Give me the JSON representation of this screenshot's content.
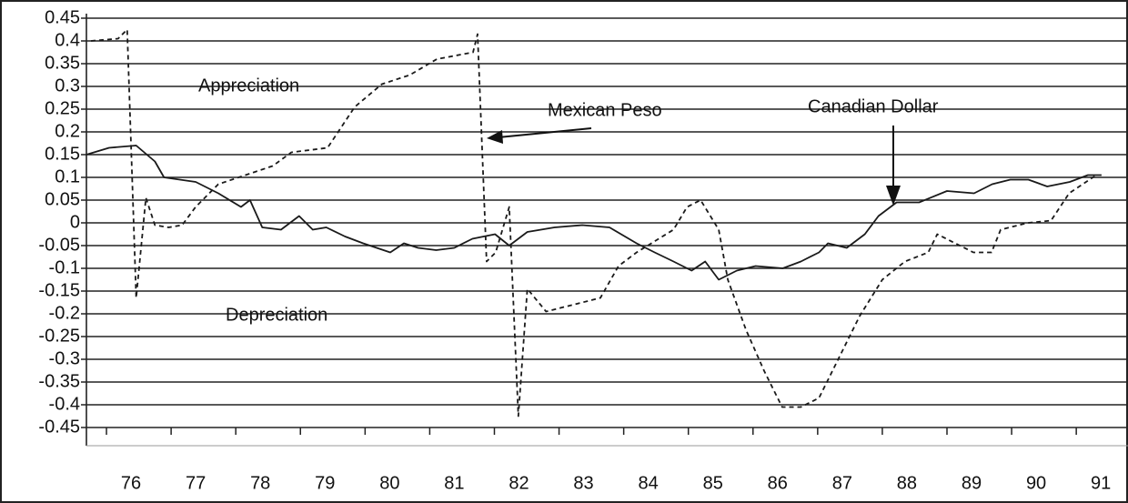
{
  "chart_data": {
    "type": "line",
    "ylim": [
      -0.45,
      0.45
    ],
    "yticks": [
      0.45,
      0.4,
      0.35,
      0.3,
      0.25,
      0.2,
      0.15,
      0.1,
      0.05,
      0,
      -0.05,
      -0.1,
      -0.15,
      -0.2,
      -0.25,
      -0.3,
      -0.35,
      -0.4,
      -0.45
    ],
    "xlim": [
      75.31,
      91.42
    ],
    "xticks": [
      76,
      77,
      78,
      79,
      80,
      81,
      82,
      83,
      84,
      85,
      86,
      87,
      88,
      89,
      90,
      91
    ],
    "grid": true,
    "annotations": [
      "Appreciation",
      "Depreciation"
    ],
    "series": [
      {
        "name": "Canadian Dollar",
        "color": "#1a1a1a",
        "dashed": false,
        "x": [
          75.31,
          75.66,
          76.08,
          76.37,
          76.51,
          77.0,
          77.35,
          77.7,
          77.84,
          78.03,
          78.32,
          78.6,
          78.81,
          79.02,
          79.31,
          79.59,
          80.01,
          80.22,
          80.44,
          80.72,
          81.0,
          81.28,
          81.63,
          81.85,
          82.13,
          82.55,
          82.98,
          83.4,
          83.82,
          84.1,
          84.39,
          84.67,
          84.88,
          85.09,
          85.37,
          85.66,
          86.08,
          86.36,
          86.64,
          86.78,
          87.07,
          87.35,
          87.56,
          87.84,
          88.19,
          88.62,
          89.04,
          89.32,
          89.6,
          89.88,
          90.17,
          90.52,
          90.8,
          91.01
        ],
        "values": [
          0.15,
          0.165,
          0.17,
          0.135,
          0.1,
          0.09,
          0.065,
          0.035,
          0.05,
          -0.01,
          -0.015,
          0.015,
          -0.015,
          -0.01,
          -0.03,
          -0.045,
          -0.065,
          -0.045,
          -0.055,
          -0.06,
          -0.055,
          -0.035,
          -0.025,
          -0.05,
          -0.02,
          -0.01,
          -0.005,
          -0.01,
          -0.045,
          -0.065,
          -0.085,
          -0.105,
          -0.085,
          -0.125,
          -0.105,
          -0.095,
          -0.1,
          -0.085,
          -0.065,
          -0.045,
          -0.055,
          -0.025,
          0.015,
          0.045,
          0.045,
          0.07,
          0.065,
          0.085,
          0.095,
          0.095,
          0.08,
          0.09,
          0.105,
          0.105
        ]
      },
      {
        "name": "Mexican Peso",
        "color": "#1a1a1a",
        "dashed": true,
        "x": [
          75.38,
          75.8,
          75.94,
          76.08,
          76.23,
          76.37,
          76.58,
          76.79,
          77.0,
          77.35,
          77.77,
          78.19,
          78.48,
          79.04,
          79.46,
          79.88,
          80.31,
          80.73,
          81.29,
          81.36,
          81.5,
          81.64,
          81.85,
          81.99,
          82.13,
          82.42,
          82.98,
          83.26,
          83.54,
          83.82,
          84.39,
          84.6,
          84.81,
          85.09,
          85.23,
          85.51,
          85.79,
          86.07,
          86.36,
          86.64,
          86.92,
          87.27,
          87.62,
          87.97,
          88.33,
          88.47,
          88.75,
          89.03,
          89.31,
          89.45,
          89.87,
          90.23,
          90.51,
          90.93
        ],
        "values": [
          0.4,
          0.405,
          0.425,
          -0.165,
          0.055,
          -0.005,
          -0.01,
          -0.005,
          0.035,
          0.085,
          0.105,
          0.125,
          0.155,
          0.165,
          0.255,
          0.305,
          0.325,
          0.36,
          0.375,
          0.415,
          -0.085,
          -0.065,
          0.035,
          -0.425,
          -0.145,
          -0.195,
          -0.175,
          -0.165,
          -0.095,
          -0.065,
          -0.015,
          0.035,
          0.05,
          -0.015,
          -0.125,
          -0.235,
          -0.325,
          -0.405,
          -0.405,
          -0.385,
          -0.305,
          -0.205,
          -0.125,
          -0.085,
          -0.065,
          -0.025,
          -0.045,
          -0.065,
          -0.065,
          -0.015,
          0,
          0.005,
          0.065,
          0.105
        ]
      }
    ]
  }
}
